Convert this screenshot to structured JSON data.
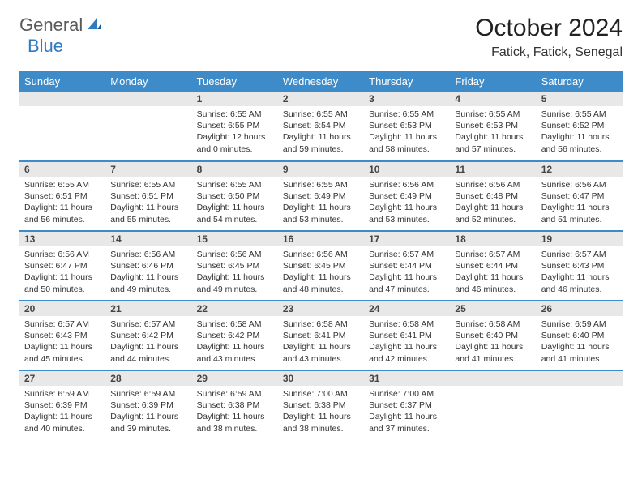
{
  "brand": {
    "part1": "General",
    "part2": "Blue"
  },
  "title": "October 2024",
  "location": "Fatick, Fatick, Senegal",
  "colors": {
    "header_bg": "#3d8bc8",
    "header_text": "#ffffff",
    "daynum_bg": "#e8e8e8",
    "row_border": "#3d8bc8",
    "logo_gray": "#5a5a5a",
    "logo_blue": "#2d7bc0",
    "body_text": "#333333"
  },
  "weekdays": [
    "Sunday",
    "Monday",
    "Tuesday",
    "Wednesday",
    "Thursday",
    "Friday",
    "Saturday"
  ],
  "weeks": [
    [
      null,
      null,
      {
        "n": "1",
        "sr": "Sunrise: 6:55 AM",
        "ss": "Sunset: 6:55 PM",
        "dl": "Daylight: 12 hours and 0 minutes."
      },
      {
        "n": "2",
        "sr": "Sunrise: 6:55 AM",
        "ss": "Sunset: 6:54 PM",
        "dl": "Daylight: 11 hours and 59 minutes."
      },
      {
        "n": "3",
        "sr": "Sunrise: 6:55 AM",
        "ss": "Sunset: 6:53 PM",
        "dl": "Daylight: 11 hours and 58 minutes."
      },
      {
        "n": "4",
        "sr": "Sunrise: 6:55 AM",
        "ss": "Sunset: 6:53 PM",
        "dl": "Daylight: 11 hours and 57 minutes."
      },
      {
        "n": "5",
        "sr": "Sunrise: 6:55 AM",
        "ss": "Sunset: 6:52 PM",
        "dl": "Daylight: 11 hours and 56 minutes."
      }
    ],
    [
      {
        "n": "6",
        "sr": "Sunrise: 6:55 AM",
        "ss": "Sunset: 6:51 PM",
        "dl": "Daylight: 11 hours and 56 minutes."
      },
      {
        "n": "7",
        "sr": "Sunrise: 6:55 AM",
        "ss": "Sunset: 6:51 PM",
        "dl": "Daylight: 11 hours and 55 minutes."
      },
      {
        "n": "8",
        "sr": "Sunrise: 6:55 AM",
        "ss": "Sunset: 6:50 PM",
        "dl": "Daylight: 11 hours and 54 minutes."
      },
      {
        "n": "9",
        "sr": "Sunrise: 6:55 AM",
        "ss": "Sunset: 6:49 PM",
        "dl": "Daylight: 11 hours and 53 minutes."
      },
      {
        "n": "10",
        "sr": "Sunrise: 6:56 AM",
        "ss": "Sunset: 6:49 PM",
        "dl": "Daylight: 11 hours and 53 minutes."
      },
      {
        "n": "11",
        "sr": "Sunrise: 6:56 AM",
        "ss": "Sunset: 6:48 PM",
        "dl": "Daylight: 11 hours and 52 minutes."
      },
      {
        "n": "12",
        "sr": "Sunrise: 6:56 AM",
        "ss": "Sunset: 6:47 PM",
        "dl": "Daylight: 11 hours and 51 minutes."
      }
    ],
    [
      {
        "n": "13",
        "sr": "Sunrise: 6:56 AM",
        "ss": "Sunset: 6:47 PM",
        "dl": "Daylight: 11 hours and 50 minutes."
      },
      {
        "n": "14",
        "sr": "Sunrise: 6:56 AM",
        "ss": "Sunset: 6:46 PM",
        "dl": "Daylight: 11 hours and 49 minutes."
      },
      {
        "n": "15",
        "sr": "Sunrise: 6:56 AM",
        "ss": "Sunset: 6:45 PM",
        "dl": "Daylight: 11 hours and 49 minutes."
      },
      {
        "n": "16",
        "sr": "Sunrise: 6:56 AM",
        "ss": "Sunset: 6:45 PM",
        "dl": "Daylight: 11 hours and 48 minutes."
      },
      {
        "n": "17",
        "sr": "Sunrise: 6:57 AM",
        "ss": "Sunset: 6:44 PM",
        "dl": "Daylight: 11 hours and 47 minutes."
      },
      {
        "n": "18",
        "sr": "Sunrise: 6:57 AM",
        "ss": "Sunset: 6:44 PM",
        "dl": "Daylight: 11 hours and 46 minutes."
      },
      {
        "n": "19",
        "sr": "Sunrise: 6:57 AM",
        "ss": "Sunset: 6:43 PM",
        "dl": "Daylight: 11 hours and 46 minutes."
      }
    ],
    [
      {
        "n": "20",
        "sr": "Sunrise: 6:57 AM",
        "ss": "Sunset: 6:43 PM",
        "dl": "Daylight: 11 hours and 45 minutes."
      },
      {
        "n": "21",
        "sr": "Sunrise: 6:57 AM",
        "ss": "Sunset: 6:42 PM",
        "dl": "Daylight: 11 hours and 44 minutes."
      },
      {
        "n": "22",
        "sr": "Sunrise: 6:58 AM",
        "ss": "Sunset: 6:42 PM",
        "dl": "Daylight: 11 hours and 43 minutes."
      },
      {
        "n": "23",
        "sr": "Sunrise: 6:58 AM",
        "ss": "Sunset: 6:41 PM",
        "dl": "Daylight: 11 hours and 43 minutes."
      },
      {
        "n": "24",
        "sr": "Sunrise: 6:58 AM",
        "ss": "Sunset: 6:41 PM",
        "dl": "Daylight: 11 hours and 42 minutes."
      },
      {
        "n": "25",
        "sr": "Sunrise: 6:58 AM",
        "ss": "Sunset: 6:40 PM",
        "dl": "Daylight: 11 hours and 41 minutes."
      },
      {
        "n": "26",
        "sr": "Sunrise: 6:59 AM",
        "ss": "Sunset: 6:40 PM",
        "dl": "Daylight: 11 hours and 41 minutes."
      }
    ],
    [
      {
        "n": "27",
        "sr": "Sunrise: 6:59 AM",
        "ss": "Sunset: 6:39 PM",
        "dl": "Daylight: 11 hours and 40 minutes."
      },
      {
        "n": "28",
        "sr": "Sunrise: 6:59 AM",
        "ss": "Sunset: 6:39 PM",
        "dl": "Daylight: 11 hours and 39 minutes."
      },
      {
        "n": "29",
        "sr": "Sunrise: 6:59 AM",
        "ss": "Sunset: 6:38 PM",
        "dl": "Daylight: 11 hours and 38 minutes."
      },
      {
        "n": "30",
        "sr": "Sunrise: 7:00 AM",
        "ss": "Sunset: 6:38 PM",
        "dl": "Daylight: 11 hours and 38 minutes."
      },
      {
        "n": "31",
        "sr": "Sunrise: 7:00 AM",
        "ss": "Sunset: 6:37 PM",
        "dl": "Daylight: 11 hours and 37 minutes."
      },
      null,
      null
    ]
  ]
}
